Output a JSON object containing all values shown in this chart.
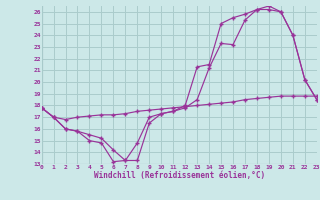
{
  "background_color": "#cce8e8",
  "grid_color": "#aacccc",
  "line_color": "#993399",
  "axis_line_color": "#8899aa",
  "xlim": [
    0,
    23
  ],
  "ylim": [
    13,
    26.5
  ],
  "xlabel": "Windchill (Refroidissement éolien,°C)",
  "yticks": [
    13,
    14,
    15,
    16,
    17,
    18,
    19,
    20,
    21,
    22,
    23,
    24,
    25,
    26
  ],
  "xticks": [
    0,
    1,
    2,
    3,
    4,
    5,
    6,
    7,
    8,
    9,
    10,
    11,
    12,
    13,
    14,
    15,
    16,
    17,
    18,
    19,
    20,
    21,
    22,
    23
  ],
  "line1_x": [
    0,
    1,
    2,
    3,
    4,
    5,
    6,
    7,
    8,
    9,
    10,
    11,
    12,
    13,
    14,
    15,
    16,
    17,
    18,
    19,
    20,
    21,
    22,
    23
  ],
  "line1_y": [
    17.8,
    17.0,
    16.0,
    15.8,
    15.0,
    14.8,
    13.2,
    13.3,
    14.8,
    17.0,
    17.3,
    17.5,
    17.8,
    18.5,
    21.2,
    23.3,
    23.2,
    25.3,
    26.2,
    26.2,
    26.0,
    24.0,
    20.2,
    18.5
  ],
  "line2_x": [
    0,
    1,
    2,
    3,
    4,
    5,
    6,
    7,
    8,
    9,
    10,
    11,
    12,
    13,
    14,
    15,
    16,
    17,
    18,
    19,
    20,
    21,
    22,
    23
  ],
  "line2_y": [
    17.8,
    17.0,
    16.0,
    15.8,
    15.5,
    15.2,
    14.2,
    13.3,
    13.3,
    16.5,
    17.3,
    17.5,
    18.0,
    21.3,
    21.5,
    25.0,
    25.5,
    25.8,
    26.2,
    26.5,
    26.0,
    24.0,
    20.2,
    18.5
  ],
  "line3_x": [
    0,
    1,
    2,
    3,
    4,
    5,
    6,
    7,
    8,
    9,
    10,
    11,
    12,
    13,
    14,
    15,
    16,
    17,
    18,
    19,
    20,
    21,
    22,
    23
  ],
  "line3_y": [
    17.8,
    17.0,
    16.8,
    17.0,
    17.1,
    17.2,
    17.2,
    17.3,
    17.5,
    17.6,
    17.7,
    17.8,
    17.9,
    18.0,
    18.1,
    18.2,
    18.3,
    18.5,
    18.6,
    18.7,
    18.8,
    18.8,
    18.8,
    18.8
  ]
}
